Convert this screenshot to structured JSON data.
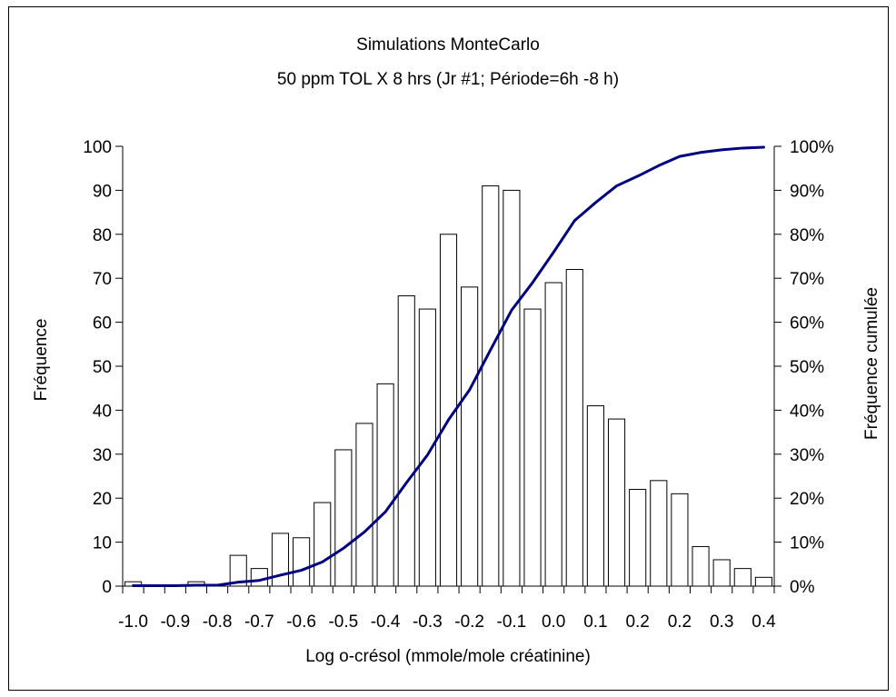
{
  "chart_data": {
    "type": "bar",
    "title": "Simulations MonteCarlo",
    "subtitle": "50 ppm TOL X 8 hrs  (Jr #1; Période=6h -8 h)",
    "xlabel": "Log  o-crésol (mmole/mole créatinine)",
    "ylabel": "Fréquence",
    "y2label": "Fréquence cumulée",
    "ylim": [
      0,
      100
    ],
    "y2lim": [
      0,
      1
    ],
    "yticks": [
      "0",
      "10",
      "20",
      "30",
      "40",
      "50",
      "60",
      "70",
      "80",
      "90",
      "100"
    ],
    "y2ticks": [
      "0%",
      "10%",
      "20%",
      "30%",
      "40%",
      "50%",
      "60%",
      "70%",
      "80%",
      "90%",
      "100%"
    ],
    "tick_labels": [
      "-1.0",
      "-0.9",
      "-0.8",
      "-0.7",
      "-0.6",
      "-0.5",
      "-0.4",
      "-0.3",
      "-0.2",
      "-0.1",
      "0.0",
      "0.1",
      "0.2",
      "0.2",
      "0.3",
      "0.4"
    ],
    "values": [
      1,
      0,
      0,
      1,
      0,
      7,
      4,
      12,
      11,
      19,
      31,
      37,
      46,
      66,
      63,
      80,
      68,
      91,
      90,
      63,
      69,
      72,
      41,
      38,
      22,
      24,
      21,
      9,
      6,
      4,
      2
    ],
    "series": [
      {
        "name": "Fréquence cumulée",
        "type": "line",
        "color": "#000080",
        "values": [
          0.001,
          0.001,
          0.001,
          0.002,
          0.002,
          0.009,
          0.013,
          0.025,
          0.036,
          0.055,
          0.086,
          0.123,
          0.169,
          0.235,
          0.298,
          0.378,
          0.446,
          0.537,
          0.627,
          0.69,
          0.759,
          0.831,
          0.872,
          0.91,
          0.932,
          0.956,
          0.977,
          0.986,
          0.992,
          0.996,
          0.998
        ]
      }
    ],
    "grid": false,
    "legend": "none"
  }
}
